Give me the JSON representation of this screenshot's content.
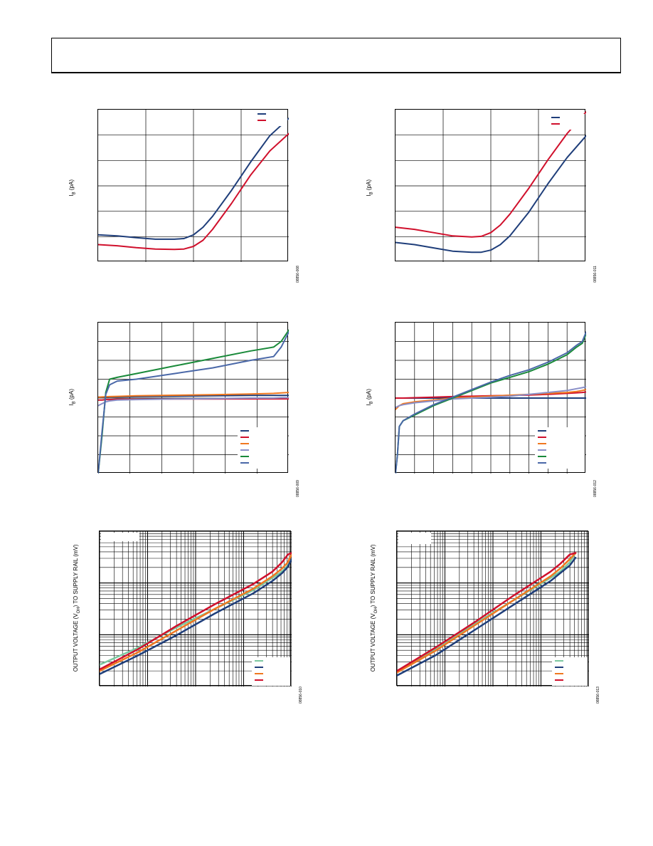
{
  "page": {},
  "charts": {
    "c1": {
      "ylabel_main": "I",
      "ylabel_sub": "B",
      "ylabel_unit": "(pA)",
      "code": "08856-008"
    },
    "c2": {
      "ylabel_main": "I",
      "ylabel_sub": "B",
      "ylabel_unit": "(pA)",
      "code": "08856-011"
    },
    "c3": {
      "ylabel_main": "I",
      "ylabel_sub": "B",
      "ylabel_unit": "(pA)",
      "code": "08856-009"
    },
    "c4": {
      "ylabel_main": "I",
      "ylabel_sub": "B",
      "ylabel_unit": "(pA)",
      "code": "08856-012"
    },
    "c5": {
      "ylabel_pre": "OUTPUT VOLTAGE (V",
      "ylabel_sub": "OH",
      "ylabel_post": ") TO SUPPLY RAIL (mV)",
      "code": "08856-010"
    },
    "c6": {
      "ylabel_pre": "OUTPUT VOLTAGE (V",
      "ylabel_sub": "OH",
      "ylabel_post": ") TO SUPPLY RAIL (mV)",
      "code": "08856-013"
    }
  },
  "chart_data": [
    {
      "type": "line",
      "grid": true,
      "legend_position": "top-right",
      "x": [
        0,
        0.1,
        0.2,
        0.3,
        0.4,
        0.45,
        0.5,
        0.55,
        0.6,
        0.7,
        0.8,
        0.9,
        1.0
      ],
      "series": [
        {
          "color": "#1f3e7a",
          "values": [
            1.25,
            1.2,
            1.12,
            1.05,
            1.05,
            1.08,
            1.25,
            1.6,
            2.1,
            3.3,
            4.6,
            5.8,
            6.6
          ]
        },
        {
          "color": "#d0102c",
          "values": [
            0.8,
            0.75,
            0.66,
            0.6,
            0.58,
            0.6,
            0.72,
            1.0,
            1.5,
            2.7,
            4.0,
            5.1,
            5.9
          ]
        }
      ],
      "ylim": [
        0,
        7.0
      ],
      "xlim": [
        0,
        1.0
      ]
    },
    {
      "type": "line",
      "grid": true,
      "legend_position": "top-right",
      "x": [
        0,
        0.1,
        0.2,
        0.3,
        0.4,
        0.45,
        0.5,
        0.55,
        0.6,
        0.7,
        0.8,
        0.9,
        1.0
      ],
      "series": [
        {
          "color": "#1f3e7a",
          "values": [
            0.9,
            0.8,
            0.65,
            0.5,
            0.45,
            0.45,
            0.55,
            0.8,
            1.2,
            2.3,
            3.6,
            4.8,
            5.8
          ]
        },
        {
          "color": "#d0102c",
          "values": [
            1.6,
            1.5,
            1.35,
            1.2,
            1.15,
            1.18,
            1.35,
            1.7,
            2.2,
            3.4,
            4.7,
            5.9,
            6.9
          ]
        }
      ],
      "ylim": [
        0,
        7.0
      ],
      "xlim": [
        0,
        1.0
      ]
    },
    {
      "type": "line",
      "grid": true,
      "legend_position": "bottom-right",
      "x": [
        0,
        0.02,
        0.04,
        0.06,
        0.1,
        0.2,
        0.4,
        0.6,
        0.8,
        0.92,
        0.96,
        1.0
      ],
      "series": [
        {
          "color": "#1f3e7a",
          "values": [
            0.05,
            0.05,
            0.05,
            0.06,
            0.06,
            0.08,
            0.1,
            0.12,
            0.14,
            0.14,
            0.14,
            0.14
          ]
        },
        {
          "color": "#d0102c",
          "values": [
            -0.1,
            -0.1,
            -0.08,
            -0.08,
            -0.06,
            -0.06,
            -0.05,
            -0.05,
            -0.04,
            -0.04,
            -0.04,
            -0.04
          ]
        },
        {
          "color": "#f07820",
          "values": [
            0.05,
            0.06,
            0.07,
            0.08,
            0.09,
            0.12,
            0.15,
            0.18,
            0.22,
            0.25,
            0.27,
            0.3
          ]
        },
        {
          "color": "#8a8fc8",
          "values": [
            -0.4,
            -0.3,
            -0.2,
            -0.15,
            -0.1,
            -0.08,
            -0.05,
            -0.03,
            0.0,
            0.0,
            0.02,
            0.02
          ]
        },
        {
          "color": "#1a8a3a",
          "values": [
            -4.0,
            -2.0,
            0.3,
            1.0,
            1.1,
            1.3,
            1.7,
            2.1,
            2.5,
            2.7,
            3.0,
            3.6
          ]
        },
        {
          "color": "#4a68a8",
          "values": [
            -4.0,
            -1.8,
            0.2,
            0.7,
            0.9,
            1.0,
            1.3,
            1.6,
            2.0,
            2.2,
            2.7,
            3.5
          ]
        }
      ],
      "ylim": [
        -4,
        4
      ],
      "xlim": [
        0,
        1.0
      ]
    },
    {
      "type": "line",
      "grid": true,
      "legend_position": "bottom-right",
      "x": [
        0,
        0.01,
        0.02,
        0.04,
        0.1,
        0.2,
        0.3,
        0.4,
        0.5,
        0.6,
        0.7,
        0.8,
        0.9,
        0.95,
        0.98,
        1.0
      ],
      "series": [
        {
          "color": "#1f3e7a",
          "values": [
            0.0,
            0.0,
            0.0,
            0.0,
            0.0,
            0.0,
            0.0,
            0.0,
            0.0,
            0.0,
            0.0,
            0.0,
            0.0,
            0.0,
            0.0,
            0.0
          ]
        },
        {
          "color": "#d0102c",
          "values": [
            0.0,
            0.0,
            0.0,
            0.0,
            0.02,
            0.05,
            0.08,
            0.1,
            0.12,
            0.14,
            0.16,
            0.2,
            0.25,
            0.28,
            0.3,
            0.32
          ]
        },
        {
          "color": "#f07820",
          "values": [
            -0.6,
            -0.5,
            -0.4,
            -0.3,
            -0.2,
            -0.1,
            0.0,
            0.05,
            0.1,
            0.15,
            0.2,
            0.25,
            0.3,
            0.35,
            0.4,
            0.45
          ]
        },
        {
          "color": "#8a8fc8",
          "values": [
            -0.5,
            -0.45,
            -0.4,
            -0.35,
            -0.25,
            -0.15,
            -0.05,
            0.0,
            0.05,
            0.1,
            0.2,
            0.3,
            0.4,
            0.5,
            0.55,
            0.6
          ]
        },
        {
          "color": "#1a8a3a",
          "values": [
            -4.0,
            -3.0,
            -1.5,
            -1.2,
            -0.9,
            -0.4,
            0.0,
            0.4,
            0.8,
            1.1,
            1.4,
            1.8,
            2.3,
            2.7,
            2.9,
            3.4
          ]
        },
        {
          "color": "#4a68a8",
          "values": [
            -4.0,
            -3.0,
            -1.5,
            -1.2,
            -0.85,
            -0.35,
            0.05,
            0.45,
            0.85,
            1.2,
            1.5,
            1.9,
            2.4,
            2.8,
            3.0,
            3.5
          ]
        }
      ],
      "ylim": [
        -4,
        4
      ],
      "xlim": [
        0,
        1.0
      ]
    },
    {
      "type": "line",
      "grid": true,
      "log_x": true,
      "log_y": true,
      "legend_position": "bottom-right",
      "x": [
        0,
        0.2,
        0.4,
        0.6,
        0.8,
        0.9,
        0.95,
        0.98,
        1.0
      ],
      "series": [
        {
          "color": "#7cc8a0",
          "values": [
            0.14,
            0.25,
            0.38,
            0.5,
            0.62,
            0.7,
            0.74,
            0.78,
            0.82
          ]
        },
        {
          "color": "#1f3e7a",
          "values": [
            0.08,
            0.2,
            0.33,
            0.47,
            0.6,
            0.68,
            0.73,
            0.77,
            0.82
          ]
        },
        {
          "color": "#f07820",
          "values": [
            0.1,
            0.22,
            0.36,
            0.5,
            0.63,
            0.71,
            0.76,
            0.8,
            0.85
          ]
        },
        {
          "color": "#d0102c",
          "values": [
            0.11,
            0.24,
            0.39,
            0.53,
            0.66,
            0.74,
            0.8,
            0.85,
            0.86
          ]
        }
      ],
      "ylim": [
        0,
        1
      ],
      "xlim": [
        0,
        1
      ]
    },
    {
      "type": "line",
      "grid": true,
      "log_x": true,
      "log_y": true,
      "legend_position": "bottom-right",
      "x": [
        0,
        0.2,
        0.4,
        0.6,
        0.8,
        0.85,
        0.9,
        0.93
      ],
      "series": [
        {
          "color": "#7cc8a0",
          "values": [
            0.1,
            0.24,
            0.4,
            0.55,
            0.7,
            0.74,
            0.8,
            0.86
          ]
        },
        {
          "color": "#1f3e7a",
          "values": [
            0.07,
            0.2,
            0.36,
            0.52,
            0.68,
            0.73,
            0.78,
            0.83
          ]
        },
        {
          "color": "#f07820",
          "values": [
            0.09,
            0.23,
            0.39,
            0.55,
            0.71,
            0.76,
            0.82,
            0.86
          ]
        },
        {
          "color": "#d0102c",
          "values": [
            0.1,
            0.25,
            0.41,
            0.58,
            0.74,
            0.79,
            0.85,
            0.86
          ]
        }
      ],
      "ylim": [
        0,
        1
      ],
      "xlim": [
        0,
        1
      ]
    }
  ]
}
